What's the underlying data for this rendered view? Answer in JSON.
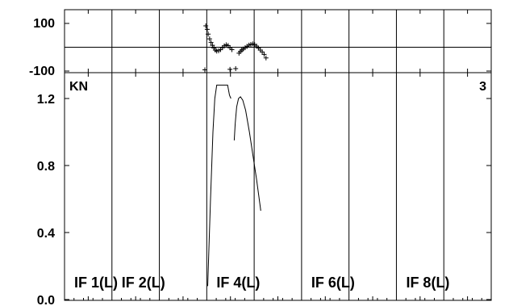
{
  "chart_data": [
    {
      "type": "scatter",
      "panel": "phase",
      "ylim": [
        -100,
        100
      ],
      "yticks": [
        {
          "value": 100,
          "label": "100"
        },
        {
          "value": -100,
          "label": "-100"
        }
      ],
      "zero_line": true,
      "points": [
        [
          2.98,
          90
        ],
        [
          3.01,
          75
        ],
        [
          3.03,
          55
        ],
        [
          3.06,
          35
        ],
        [
          3.09,
          20
        ],
        [
          3.12,
          8
        ],
        [
          3.15,
          -3
        ],
        [
          3.18,
          -12
        ],
        [
          3.21,
          -16
        ],
        [
          3.25,
          -15
        ],
        [
          3.29,
          -10
        ],
        [
          3.33,
          -2
        ],
        [
          3.37,
          6
        ],
        [
          3.41,
          10
        ],
        [
          3.45,
          7
        ],
        [
          3.49,
          -2
        ],
        [
          3.53,
          -10
        ],
        [
          2.96,
          -95
        ],
        [
          3.49,
          -93
        ],
        [
          3.68,
          -25
        ],
        [
          3.71,
          -18
        ],
        [
          3.74,
          -12
        ],
        [
          3.77,
          -7
        ],
        [
          3.81,
          -2
        ],
        [
          3.85,
          4
        ],
        [
          3.89,
          9
        ],
        [
          3.93,
          12
        ],
        [
          3.97,
          14
        ],
        [
          4.01,
          11
        ],
        [
          4.05,
          5
        ],
        [
          4.09,
          -4
        ],
        [
          4.13,
          -12
        ],
        [
          4.17,
          -20
        ],
        [
          4.21,
          -30
        ],
        [
          4.25,
          -45
        ],
        [
          3.61,
          -90
        ]
      ]
    },
    {
      "type": "line",
      "panel": "amplitude",
      "label": "KN",
      "panel_number": "3",
      "ylim": [
        0,
        1.3
      ],
      "yticks": [
        {
          "value": 0.0,
          "label": "0.0"
        },
        {
          "value": 0.4,
          "label": "0.4"
        },
        {
          "value": 0.8,
          "label": "0.8"
        },
        {
          "value": 1.2,
          "label": "1.2"
        }
      ],
      "series": [
        {
          "values": [
            [
              3.02,
              0.08
            ],
            [
              3.08,
              0.6
            ],
            [
              3.13,
              1.0
            ],
            [
              3.17,
              1.2
            ],
            [
              3.21,
              1.28
            ],
            [
              3.27,
              1.28
            ],
            [
              3.32,
              1.28
            ],
            [
              3.38,
              1.28
            ],
            [
              3.44,
              1.28
            ],
            [
              3.48,
              1.22
            ],
            [
              3.51,
              1.2
            ]
          ]
        },
        {
          "values": [
            [
              3.58,
              0.95
            ],
            [
              3.6,
              1.05
            ],
            [
              3.63,
              1.15
            ],
            [
              3.67,
              1.2
            ],
            [
              3.71,
              1.21
            ],
            [
              3.76,
              1.19
            ],
            [
              3.82,
              1.13
            ],
            [
              3.9,
              1.0
            ],
            [
              3.98,
              0.85
            ],
            [
              4.05,
              0.72
            ],
            [
              4.12,
              0.57
            ],
            [
              4.14,
              0.53
            ]
          ]
        }
      ],
      "if_labels": [
        {
          "label": "IF 1(L)",
          "x": 1.0
        },
        {
          "label": "IF 2(L)",
          "x": 2.0
        },
        {
          "label": "IF 4(L)",
          "x": 4.0
        },
        {
          "label": "IF 6(L)",
          "x": 6.0
        },
        {
          "label": "IF 8(L)",
          "x": 8.0
        }
      ]
    }
  ],
  "x_range": [
    0,
    9
  ],
  "colors": {
    "ink": "#000000",
    "background": "#ffffff"
  }
}
